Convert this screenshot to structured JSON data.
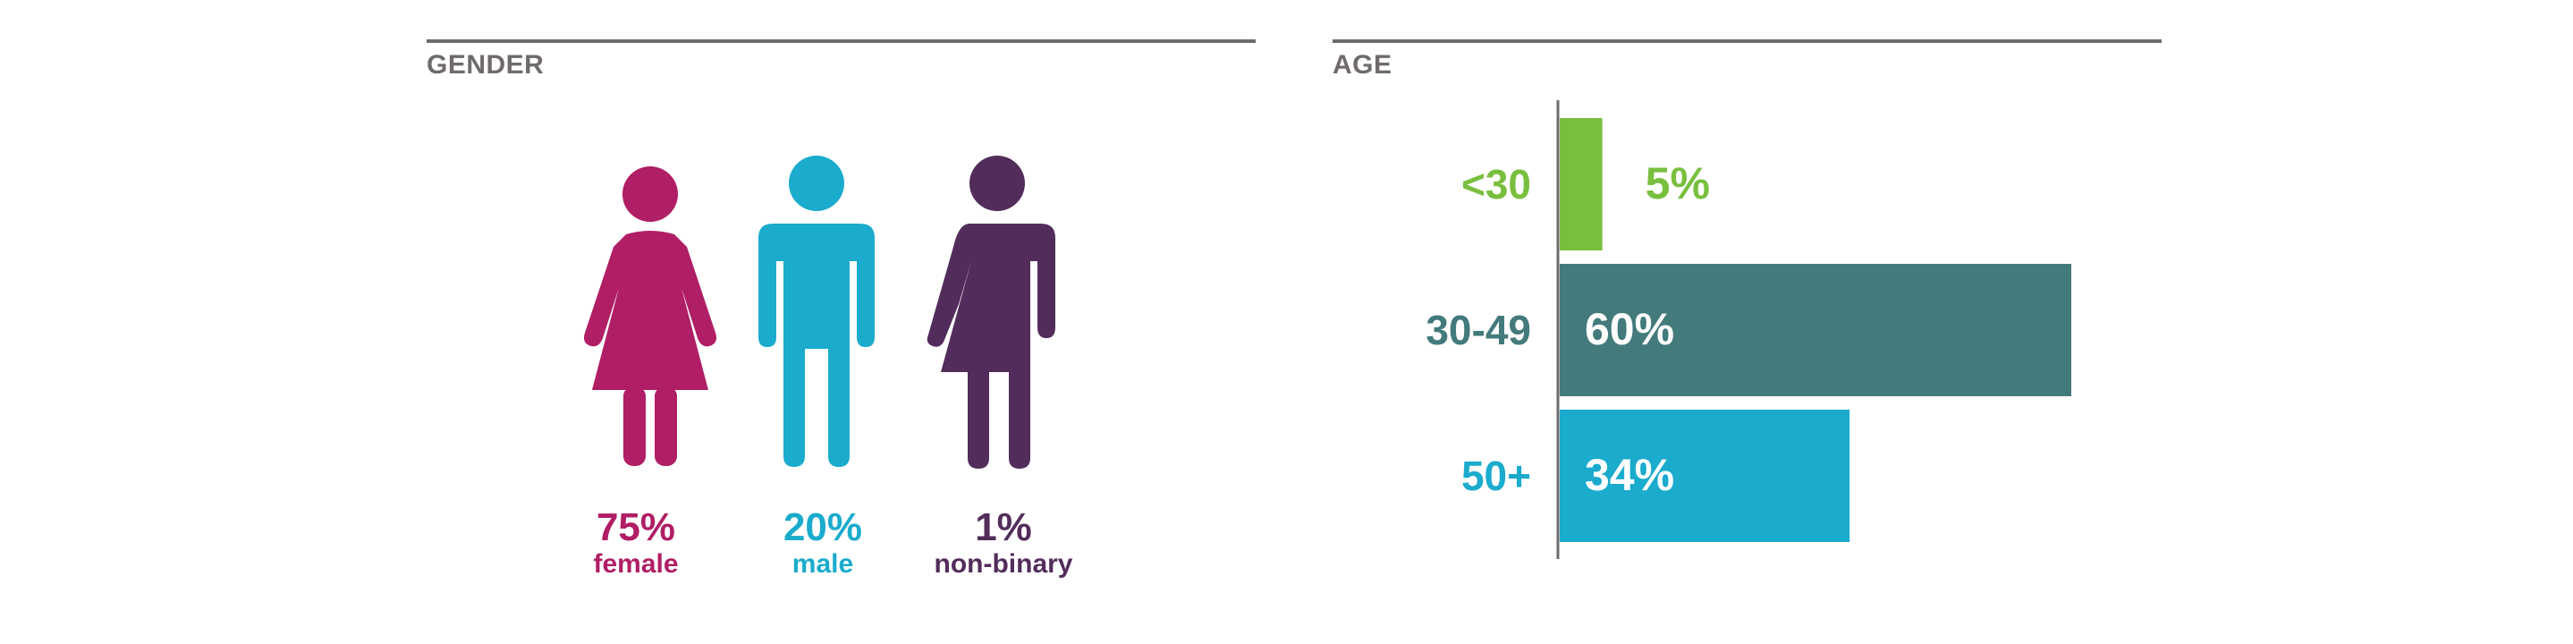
{
  "colors": {
    "female": "#b01e65",
    "male": "#1aabcd",
    "non_binary": "#522d5b",
    "title": "#6f6a6c",
    "axis": "#6f6a6c",
    "age_under30": "#79bf3e",
    "age_30_49": "#437a7b",
    "age_50plus": "#1aabcd"
  },
  "gender": {
    "title": "GENDER",
    "items": [
      {
        "id": "female",
        "percent": "75%",
        "label": "female",
        "color": "#b01e65",
        "icon": "female-figure-icon"
      },
      {
        "id": "male",
        "percent": "20%",
        "label": "male",
        "color": "#1aabcd",
        "icon": "male-figure-icon"
      },
      {
        "id": "non-binary",
        "percent": "1%",
        "label": "non-binary",
        "color": "#522d5b",
        "icon": "non-binary-figure-icon"
      }
    ]
  },
  "chart_data": [
    {
      "type": "pictogram",
      "title": "GENDER",
      "categories": [
        "female",
        "male",
        "non-binary"
      ],
      "values": [
        75,
        20,
        1
      ],
      "value_labels": [
        "75%",
        "20%",
        "1%"
      ]
    },
    {
      "type": "bar",
      "orientation": "horizontal",
      "title": "AGE",
      "categories": [
        "<30",
        "30-49",
        "50+"
      ],
      "values": [
        5,
        60,
        34
      ],
      "value_labels": [
        "5%",
        "60%",
        "34%"
      ],
      "colors": [
        "#79bf3e",
        "#437a7b",
        "#1aabcd"
      ],
      "xlim": [
        0,
        60
      ],
      "grid": false
    }
  ]
}
